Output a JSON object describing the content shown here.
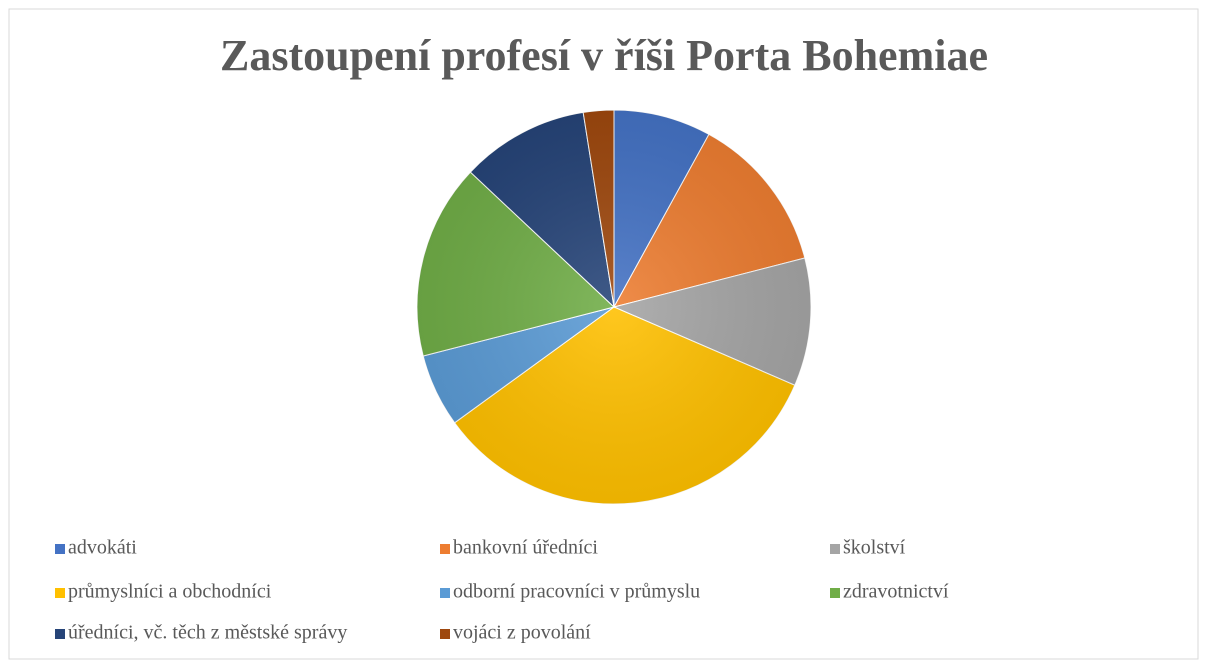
{
  "chart_data": {
    "type": "pie",
    "title": "Zastoupení profesí v říši Porta Bohemiae",
    "categories": [
      "advokáti",
      "bankovní úředníci",
      "školství",
      "průmyslníci a obchodníci",
      "odborní pracovníci v průmyslu",
      "zdravotnictví",
      "úředníci, vč. těch z městské správy",
      "vojáci z povolání"
    ],
    "values": [
      8,
      13,
      10.5,
      33.5,
      6,
      16,
      10.5,
      2.5
    ],
    "colors": [
      "#4472c4",
      "#ed7d31",
      "#a5a5a5",
      "#ffc000",
      "#5b9bd5",
      "#70ad47",
      "#264478",
      "#9e480e"
    ],
    "legend": "bottom"
  }
}
